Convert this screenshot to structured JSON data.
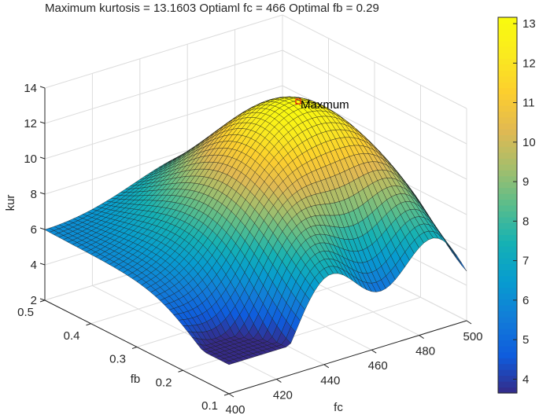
{
  "chart_data": {
    "type": "surface3d",
    "title": "Maximum kurtosis = 13.1603  Optiaml fc = 466  Optimal fb = 0.29",
    "xlabel": "fc",
    "ylabel": "fb",
    "zlabel": "kur",
    "x_ticks": [
      400,
      420,
      440,
      460,
      480,
      500
    ],
    "y_ticks": [
      0.1,
      0.2,
      0.3,
      0.4,
      0.5
    ],
    "z_ticks": [
      2,
      4,
      6,
      8,
      10,
      12,
      14
    ],
    "xlim": [
      400,
      500
    ],
    "ylim": [
      0.1,
      0.5
    ],
    "zlim": [
      2,
      14
    ],
    "grid": true,
    "colormap": "parula",
    "colorbar": {
      "ticks": [
        4,
        5,
        6,
        7,
        8,
        9,
        10,
        11,
        12,
        13
      ],
      "range": [
        3.65,
        13.16
      ]
    },
    "annotation": {
      "text": "Maxmum",
      "fc": 466,
      "fb": 0.29,
      "z": 13.1603,
      "marker_color": "#ff0000"
    },
    "maximum": {
      "kurtosis": 13.1603,
      "fc": 466,
      "fb": 0.29
    },
    "surface_samples": {
      "description": "Approximate kur(fc, fb) read from the rendered surface",
      "corners": [
        {
          "fc": 400,
          "fb": 0.5,
          "kur": 6.5
        },
        {
          "fc": 400,
          "fb": 0.1,
          "kur": 3.7
        },
        {
          "fc": 500,
          "fb": 0.1,
          "kur": 5.5
        },
        {
          "fc": 500,
          "fb": 0.5,
          "kur": 6.0
        }
      ],
      "peak": {
        "fc": 466,
        "fb": 0.29,
        "kur": 13.16
      }
    }
  },
  "labels": {
    "title": "Maximum kurtosis = 13.1603  Optiaml fc = 466  Optimal fb = 0.29",
    "xlabel": "fc",
    "ylabel": "fb",
    "zlabel": "kur",
    "annotation": "Maxmum"
  }
}
